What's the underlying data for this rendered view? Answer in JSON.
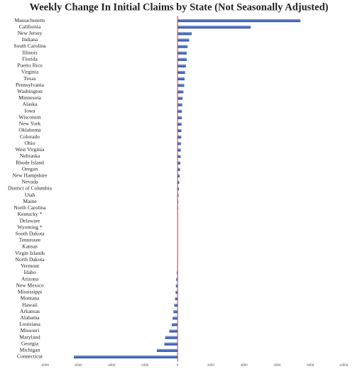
{
  "chart_data": {
    "type": "barh",
    "title": "Weekly Change In Initial Claims by State (Not Seasonally Adjusted)",
    "categories": [
      "Massachusetts",
      "California",
      "New Jersey",
      "Indiana",
      "South Carolina",
      "Illinois",
      "Florida",
      "Puerto Rico",
      "Virginia",
      "Texas",
      "Pennsylvania",
      "Washington",
      "Minnesota",
      "Alaska",
      "Iowa",
      "Wisconsin",
      "New York",
      "Oklahoma",
      "Colorado",
      "Ohio",
      "West Virginia",
      "Nebraska",
      "Rhode Island",
      "Oregon",
      "New Hampshire",
      "Nevada",
      "District of Columbia",
      "Utah",
      "Maine",
      "North Carolina",
      "Kentucky *",
      "Delaware",
      "Wyoming *",
      "South Dakota",
      "Tennessee",
      "Kansas",
      "Virgin Islands",
      "North Dakota",
      "Vermont",
      "Idaho",
      "Arizona",
      "New Mexico",
      "Mississippi",
      "Montana",
      "Hawaii",
      "Arkansas",
      "Alabama",
      "Louisiana",
      "Missouri",
      "Maryland",
      "Georgia",
      "Michigan",
      "Connecticut"
    ],
    "values": [
      7400,
      4400,
      850,
      700,
      600,
      550,
      550,
      500,
      450,
      420,
      400,
      350,
      300,
      280,
      260,
      250,
      240,
      230,
      220,
      200,
      190,
      180,
      170,
      150,
      130,
      100,
      80,
      60,
      40,
      30,
      20,
      15,
      10,
      5,
      0,
      0,
      -5,
      -10,
      -20,
      -50,
      -80,
      -100,
      -120,
      -150,
      -200,
      -250,
      -300,
      -350,
      -500,
      -750,
      -800,
      -1250,
      -6250
    ],
    "color": "#4a6fbf",
    "zero_line_color": "#d9302a",
    "xlim": [
      -8000,
      10000
    ],
    "xticks": [
      -8000,
      -6000,
      -4000,
      -2000,
      0,
      2000,
      4000,
      6000,
      8000,
      10000
    ]
  }
}
